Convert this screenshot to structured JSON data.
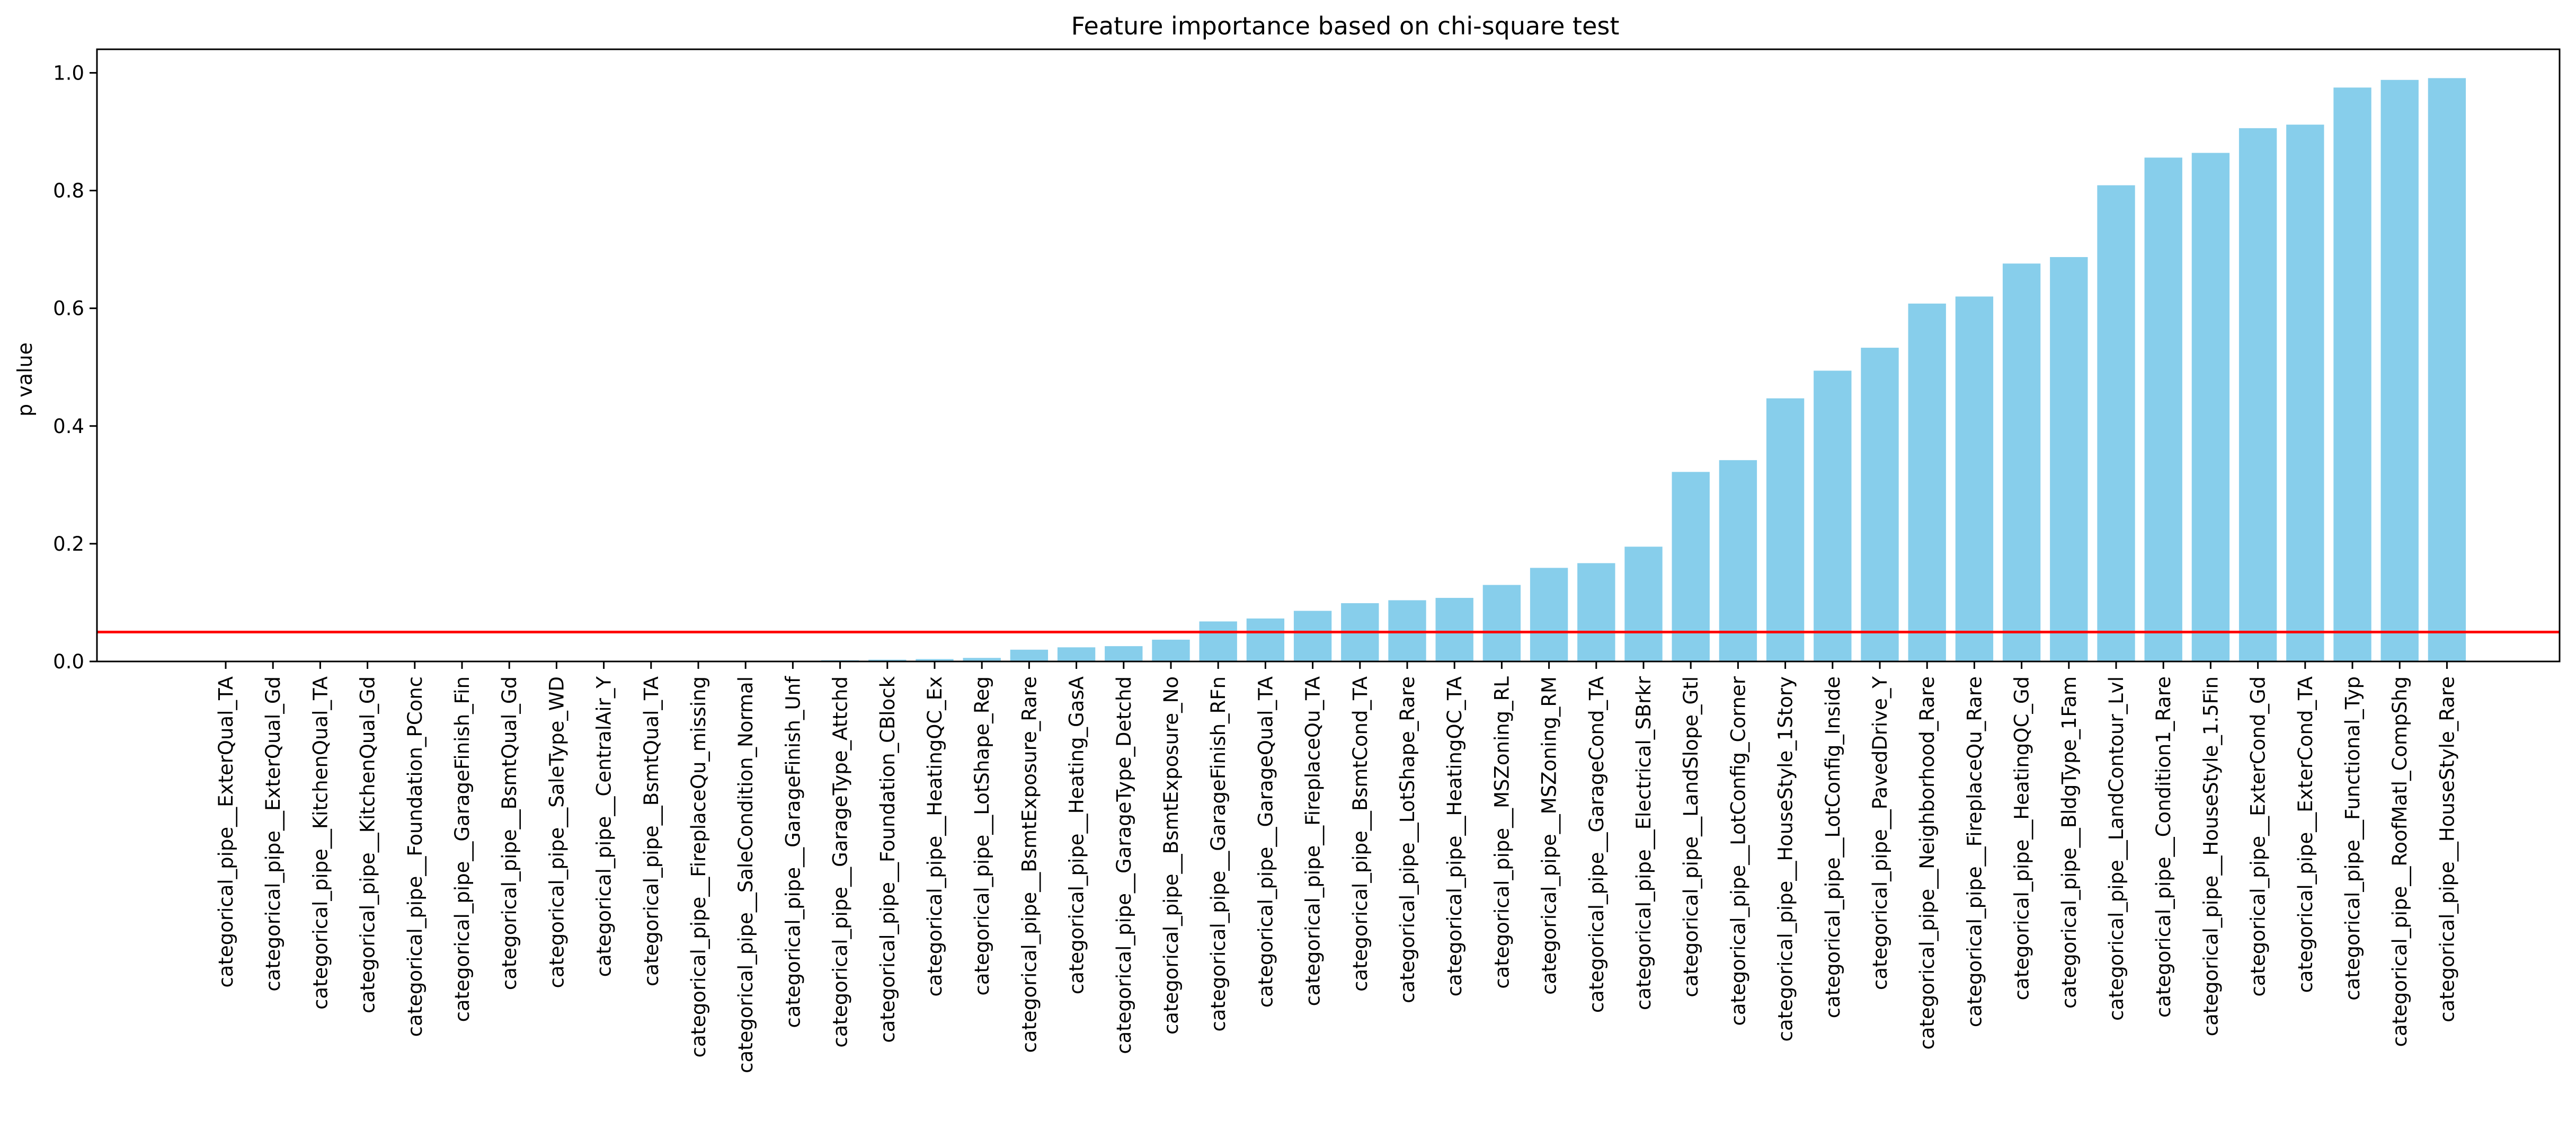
{
  "chart_data": {
    "type": "bar",
    "title": "Feature importance based on chi-square test",
    "xlabel": "",
    "ylabel": "p value",
    "ylim": [
      0,
      1.04
    ],
    "yticks": [
      "0.0",
      "0.2",
      "0.4",
      "0.6",
      "0.8",
      "1.0"
    ],
    "bar_color": "#87ceeb",
    "threshold": {
      "value": 0.05,
      "color": "#ff0000"
    },
    "categories": [
      "categorical_pipe__ExterQual_TA",
      "categorical_pipe__ExterQual_Gd",
      "categorical_pipe__KitchenQual_TA",
      "categorical_pipe__KitchenQual_Gd",
      "categorical_pipe__Foundation_PConc",
      "categorical_pipe__GarageFinish_Fin",
      "categorical_pipe__BsmtQual_Gd",
      "categorical_pipe__SaleType_WD",
      "categorical_pipe__CentralAir_Y",
      "categorical_pipe__BsmtQual_TA",
      "categorical_pipe__FireplaceQu_missing",
      "categorical_pipe__SaleCondition_Normal",
      "categorical_pipe__GarageFinish_Unf",
      "categorical_pipe__GarageType_Attchd",
      "categorical_pipe__Foundation_CBlock",
      "categorical_pipe__HeatingQC_Ex",
      "categorical_pipe__LotShape_Reg",
      "categorical_pipe__BsmtExposure_Rare",
      "categorical_pipe__Heating_GasA",
      "categorical_pipe__GarageType_Detchd",
      "categorical_pipe__BsmtExposure_No",
      "categorical_pipe__GarageFinish_RFn",
      "categorical_pipe__GarageQual_TA",
      "categorical_pipe__FireplaceQu_TA",
      "categorical_pipe__BsmtCond_TA",
      "categorical_pipe__LotShape_Rare",
      "categorical_pipe__HeatingQC_TA",
      "categorical_pipe__MSZoning_RL",
      "categorical_pipe__MSZoning_RM",
      "categorical_pipe__GarageCond_TA",
      "categorical_pipe__Electrical_SBrkr",
      "categorical_pipe__LandSlope_Gtl",
      "categorical_pipe__LotConfig_Corner",
      "categorical_pipe__HouseStyle_1Story",
      "categorical_pipe__LotConfig_Inside",
      "categorical_pipe__PavedDrive_Y",
      "categorical_pipe__Neighborhood_Rare",
      "categorical_pipe__FireplaceQu_Rare",
      "categorical_pipe__HeatingQC_Gd",
      "categorical_pipe__BldgType_1Fam",
      "categorical_pipe__LandContour_Lvl",
      "categorical_pipe__Condition1_Rare",
      "categorical_pipe__HouseStyle_1.5Fin",
      "categorical_pipe__ExterCond_Gd",
      "categorical_pipe__ExterCond_TA",
      "categorical_pipe__Functional_Typ",
      "categorical_pipe__RoofMatl_CompShg",
      "categorical_pipe__HouseStyle_Rare"
    ],
    "values": [
      0.0,
      0.0,
      0.0,
      0.0,
      0.0,
      0.0,
      0.0,
      0.0,
      0.0,
      0.0,
      0.0,
      0.0005,
      0.001,
      0.002,
      0.003,
      0.004,
      0.006,
      0.02,
      0.024,
      0.026,
      0.037,
      0.068,
      0.073,
      0.086,
      0.099,
      0.104,
      0.108,
      0.13,
      0.159,
      0.167,
      0.195,
      0.322,
      0.342,
      0.447,
      0.494,
      0.533,
      0.608,
      0.62,
      0.676,
      0.687,
      0.809,
      0.856,
      0.864,
      0.906,
      0.912,
      0.975,
      0.988,
      0.991
    ]
  }
}
